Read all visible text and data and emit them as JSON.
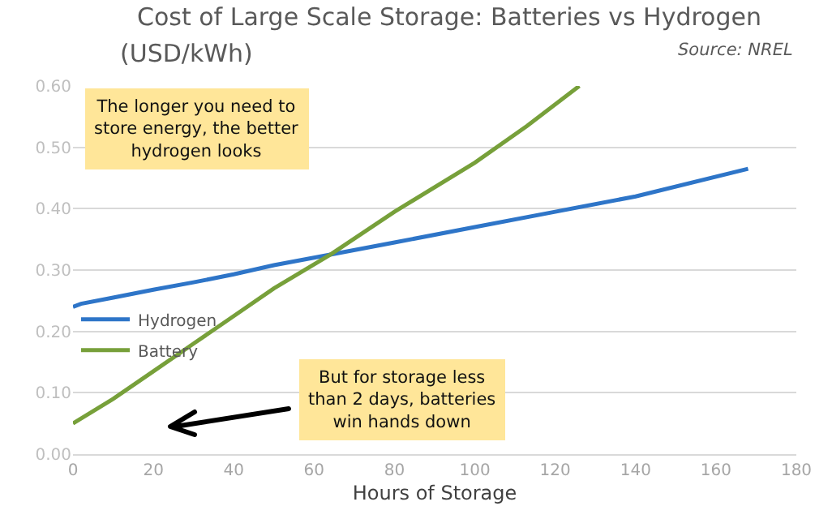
{
  "chart_data": {
    "type": "line",
    "title": "Cost of Large Scale Storage: Batteries vs Hydrogen",
    "ylabel": "(USD/kWh)",
    "xlabel": "Hours of Storage",
    "annotations": [
      "Source: NREL",
      "The longer you need to\nstore energy, the better\nhydrogen looks",
      "But for storage less\nthan 2 days, batteries\nwin hands down"
    ],
    "series": [
      {
        "name": "Hydrogen",
        "color": "#2e75c8",
        "x": [
          0,
          2,
          10,
          20,
          30,
          40,
          50,
          64,
          80,
          100,
          120,
          140,
          168
        ],
        "values": [
          0.24,
          0.245,
          0.255,
          0.268,
          0.28,
          0.293,
          0.308,
          0.325,
          0.345,
          0.37,
          0.395,
          0.42,
          0.465
        ]
      },
      {
        "name": "Battery",
        "color": "#77a03a",
        "x": [
          0,
          10,
          20,
          30,
          40,
          50,
          64,
          80,
          100,
          113,
          126
        ],
        "values": [
          0.05,
          0.09,
          0.135,
          0.18,
          0.225,
          0.27,
          0.325,
          0.395,
          0.475,
          0.535,
          0.6
        ]
      }
    ],
    "xlim": [
      0,
      180
    ],
    "xticks": [
      0,
      20,
      40,
      60,
      80,
      100,
      120,
      140,
      160,
      180
    ],
    "ylim": [
      0,
      0.6
    ],
    "yticks": [
      {
        "value": 0,
        "label": "0.00"
      },
      {
        "value": 0.1,
        "label": "0.10"
      },
      {
        "value": 0.2,
        "label": "0.20"
      },
      {
        "value": 0.3,
        "label": "0.30"
      },
      {
        "value": 0.4,
        "label": "0.40"
      },
      {
        "value": 0.5,
        "label": "0.50"
      },
      {
        "value": 0.6,
        "label": "0.60"
      }
    ],
    "grid": "y",
    "legend": "left",
    "marker": "none",
    "line_style": "solid"
  }
}
